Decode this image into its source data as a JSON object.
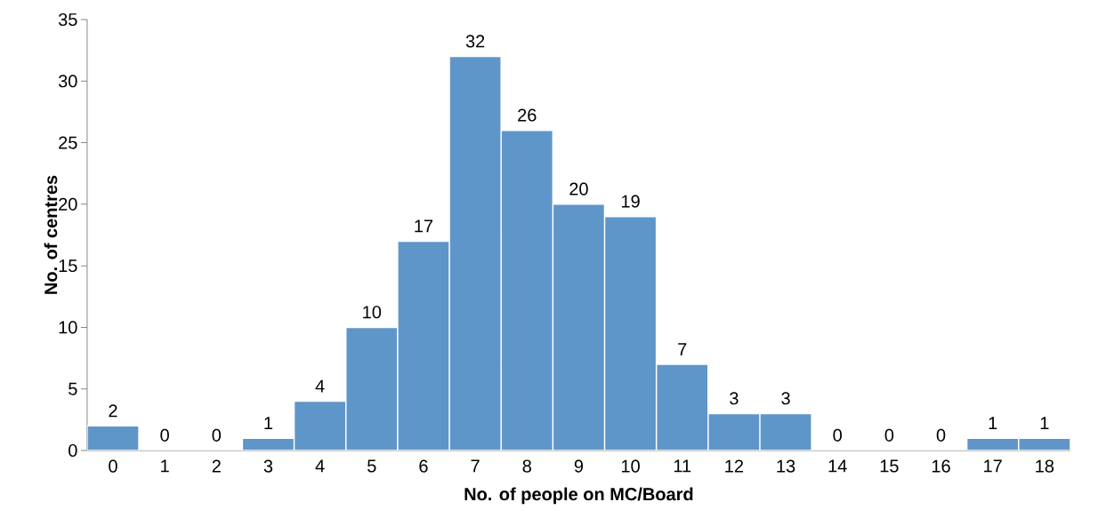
{
  "chart_data": {
    "type": "bar",
    "xlabel": "No. of people on MC/Board",
    "ylabel": "No. of centres",
    "categories": [
      "0",
      "1",
      "2",
      "3",
      "4",
      "5",
      "6",
      "7",
      "8",
      "9",
      "10",
      "11",
      "12",
      "13",
      "14",
      "15",
      "16",
      "17",
      "18"
    ],
    "values": [
      2,
      0,
      0,
      1,
      4,
      10,
      17,
      32,
      26,
      20,
      19,
      7,
      3,
      3,
      0,
      0,
      0,
      1,
      1
    ],
    "color": "#5f96c9",
    "ylim": [
      0,
      35
    ],
    "yticks": [
      0,
      5,
      10,
      15,
      20,
      25,
      30,
      35
    ],
    "data_labels": true
  }
}
